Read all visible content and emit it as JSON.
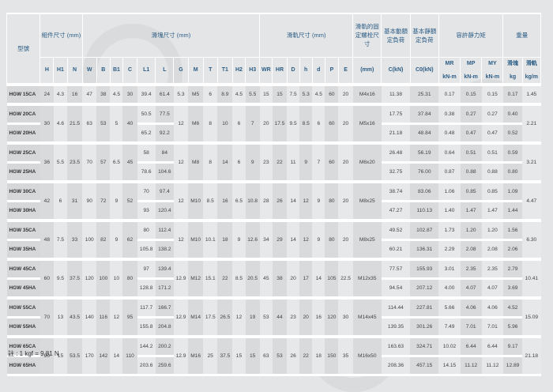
{
  "header": {
    "model": "型號",
    "assembly": "組件尺寸 (mm)",
    "block": "滑塊尺寸 (mm)",
    "rail": "滑軌尺寸 (mm)",
    "bolt": "滑軌的固定螺栓尺寸",
    "dynamic": "基本動額定負荷",
    "static": "基本靜額定負荷",
    "moment": "容許靜力矩",
    "weight": "重量",
    "weight_block": "滑塊",
    "weight_rail": "滑軌",
    "cols": [
      "H",
      "H1",
      "N",
      "W",
      "B",
      "B1",
      "C",
      "L1",
      "L",
      "G",
      "M",
      "T",
      "T1",
      "H2",
      "H3",
      "WR",
      "HR",
      "D",
      "h",
      "d",
      "P",
      "E"
    ],
    "bolt_unit": "(mm)",
    "c_unit": "C(kN)",
    "c0_unit": "C0(kN)",
    "moment_cols": [
      "MR",
      "MP",
      "MY"
    ],
    "moment_unit": "kN-m",
    "kg": "kg",
    "kgm": "kg/m"
  },
  "groups": [
    {
      "assembly": [
        "24",
        "4.3",
        "16",
        "47",
        "38",
        "4.5",
        "30"
      ],
      "block": [
        "5.3",
        "M5",
        "6",
        "8.9",
        "4.5",
        "5.5"
      ],
      "rail": [
        "15",
        "15",
        "7.5",
        "5.3",
        "4.5",
        "60",
        "20"
      ],
      "bolt": "M4x16",
      "rail_kg": "1.45",
      "rows": [
        {
          "model": "HGW 15CA",
          "L1": "39.4",
          "L": "61.4",
          "C": "11.38",
          "C0": "25.31",
          "MR": "0.17",
          "MP": "0.15",
          "MY": "0.15",
          "kg": "0.17"
        }
      ]
    },
    {
      "assembly": [
        "30",
        "4.6",
        "21.5",
        "63",
        "53",
        "5",
        "40"
      ],
      "block": [
        "12",
        "M6",
        "8",
        "10",
        "6",
        "7"
      ],
      "rail": [
        "20",
        "17.5",
        "9.5",
        "8.5",
        "6",
        "60",
        "20"
      ],
      "bolt": "M5x16",
      "rail_kg": "2.21",
      "rows": [
        {
          "model": "HGW 20CA",
          "L1": "50.5",
          "L": "77.5",
          "C": "17.75",
          "C0": "37.84",
          "MR": "0.38",
          "MP": "0.27",
          "MY": "0.27",
          "kg": "0.40"
        },
        {
          "model": "HGW 20HA",
          "L1": "65.2",
          "L": "92.2",
          "C": "21.18",
          "C0": "48.84",
          "MR": "0.48",
          "MP": "0.47",
          "MY": "0.47",
          "kg": "0.52"
        }
      ]
    },
    {
      "assembly": [
        "36",
        "5.5",
        "23.5",
        "70",
        "57",
        "6.5",
        "45"
      ],
      "block": [
        "12",
        "M8",
        "8",
        "14",
        "6",
        "9"
      ],
      "rail": [
        "23",
        "22",
        "11",
        "9",
        "7",
        "60",
        "20"
      ],
      "bolt": "M6x20",
      "rail_kg": "3.21",
      "rows": [
        {
          "model": "HGW 25CA",
          "L1": "58",
          "L": "84",
          "C": "26.48",
          "C0": "56.19",
          "MR": "0.64",
          "MP": "0.51",
          "MY": "0.51",
          "kg": "0.59"
        },
        {
          "model": "HGW 25HA",
          "L1": "78.6",
          "L": "104.6",
          "C": "32.75",
          "C0": "76.00",
          "MR": "0.87",
          "MP": "0.88",
          "MY": "0.88",
          "kg": "0.80"
        }
      ]
    },
    {
      "assembly": [
        "42",
        "6",
        "31",
        "90",
        "72",
        "9",
        "52"
      ],
      "block": [
        "12",
        "M10",
        "8.5",
        "16",
        "6.5",
        "10.8"
      ],
      "rail": [
        "28",
        "26",
        "14",
        "12",
        "9",
        "80",
        "20"
      ],
      "bolt": "M8x25",
      "rail_kg": "4.47",
      "rows": [
        {
          "model": "HGW 30CA",
          "L1": "70",
          "L": "97.4",
          "C": "38.74",
          "C0": "83.06",
          "MR": "1.06",
          "MP": "0.85",
          "MY": "0.85",
          "kg": "1.09"
        },
        {
          "model": "HGW 30HA",
          "L1": "93",
          "L": "120.4",
          "C": "47.27",
          "C0": "110.13",
          "MR": "1.40",
          "MP": "1.47",
          "MY": "1.47",
          "kg": "1.44"
        }
      ]
    },
    {
      "assembly": [
        "48",
        "7.5",
        "33",
        "100",
        "82",
        "9",
        "62"
      ],
      "block": [
        "12",
        "M10",
        "10.1",
        "18",
        "9",
        "12.6"
      ],
      "rail": [
        "34",
        "29",
        "14",
        "12",
        "9",
        "80",
        "20"
      ],
      "bolt": "M8x25",
      "rail_kg": "6.30",
      "rows": [
        {
          "model": "HGW 35CA",
          "L1": "80",
          "L": "112.4",
          "C": "49.52",
          "C0": "102.87",
          "MR": "1.73",
          "MP": "1.20",
          "MY": "1.20",
          "kg": "1.56"
        },
        {
          "model": "HGW 35HA",
          "L1": "105.8",
          "L": "138.2",
          "C": "60.21",
          "C0": "136.31",
          "MR": "2.29",
          "MP": "2.08",
          "MY": "2.08",
          "kg": "2.06"
        }
      ]
    },
    {
      "assembly": [
        "60",
        "9.5",
        "37.5",
        "120",
        "100",
        "10",
        "80"
      ],
      "block": [
        "12.9",
        "M12",
        "15.1",
        "22",
        "8.5",
        "20.5"
      ],
      "rail": [
        "45",
        "38",
        "20",
        "17",
        "14",
        "105",
        "22.5"
      ],
      "bolt": "M12x35",
      "rail_kg": "10.41",
      "rows": [
        {
          "model": "HGW 45CA",
          "L1": "97",
          "L": "139.4",
          "C": "77.57",
          "C0": "155.93",
          "MR": "3.01",
          "MP": "2.35",
          "MY": "2.35",
          "kg": "2.79"
        },
        {
          "model": "HGW 45HA",
          "L1": "128.8",
          "L": "171.2",
          "C": "94.54",
          "C0": "207.12",
          "MR": "4.00",
          "MP": "4.07",
          "MY": "4.07",
          "kg": "3.69"
        }
      ]
    },
    {
      "assembly": [
        "70",
        "13",
        "43.5",
        "140",
        "116",
        "12",
        "95"
      ],
      "block": [
        "12.9",
        "M14",
        "17.5",
        "26.5",
        "12",
        "19"
      ],
      "rail": [
        "53",
        "44",
        "23",
        "20",
        "16",
        "120",
        "30"
      ],
      "bolt": "M14x45",
      "rail_kg": "15.09",
      "rows": [
        {
          "model": "HGW 55CA",
          "L1": "117.7",
          "L": "166.7",
          "C": "114.44",
          "C0": "227.81",
          "MR": "5.66",
          "MP": "4.06",
          "MY": "4.06",
          "kg": "4.52"
        },
        {
          "model": "HGW 55HA",
          "L1": "155.8",
          "L": "204.8",
          "C": "139.35",
          "C0": "301.26",
          "MR": "7.49",
          "MP": "7.01",
          "MY": "7.01",
          "kg": "5.96"
        }
      ]
    },
    {
      "assembly": [
        "90",
        "15",
        "53.5",
        "170",
        "142",
        "14",
        "110"
      ],
      "block": [
        "12.9",
        "M16",
        "25",
        "37.5",
        "15",
        "15"
      ],
      "rail": [
        "63",
        "53",
        "26",
        "22",
        "18",
        "150",
        "35"
      ],
      "bolt": "M16x50",
      "rail_kg": "21.18",
      "rows": [
        {
          "model": "HGW 65CA",
          "L1": "144.2",
          "L": "200.2",
          "C": "163.63",
          "C0": "324.71",
          "MR": "10.02",
          "MP": "6.44",
          "MY": "6.44",
          "kg": "9.17"
        },
        {
          "model": "HGW 65HA",
          "L1": "203.6",
          "L": "259.6",
          "C": "208.36",
          "C0": "457.15",
          "MR": "14.15",
          "MP": "11.12",
          "MY": "11.12",
          "kg": "12.89"
        }
      ]
    }
  ],
  "note": "註 : 1 kgf = 9.81 N"
}
